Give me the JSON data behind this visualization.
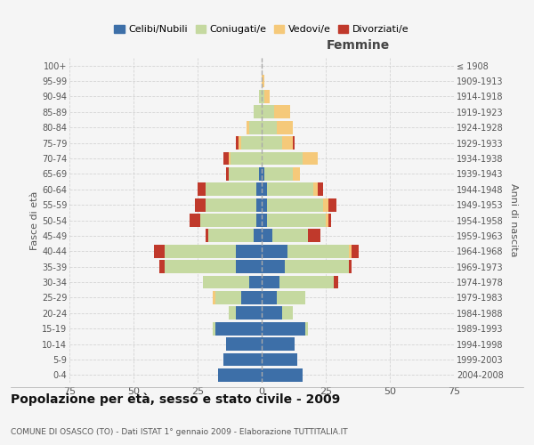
{
  "age_groups": [
    "0-4",
    "5-9",
    "10-14",
    "15-19",
    "20-24",
    "25-29",
    "30-34",
    "35-39",
    "40-44",
    "45-49",
    "50-54",
    "55-59",
    "60-64",
    "65-69",
    "70-74",
    "75-79",
    "80-84",
    "85-89",
    "90-94",
    "95-99",
    "100+"
  ],
  "birth_years": [
    "2004-2008",
    "1999-2003",
    "1994-1998",
    "1989-1993",
    "1984-1988",
    "1979-1983",
    "1974-1978",
    "1969-1973",
    "1964-1968",
    "1959-1963",
    "1954-1958",
    "1949-1953",
    "1944-1948",
    "1939-1943",
    "1934-1938",
    "1929-1933",
    "1924-1928",
    "1919-1923",
    "1914-1918",
    "1909-1913",
    "≤ 1908"
  ],
  "males": {
    "celibi": [
      17,
      15,
      14,
      18,
      10,
      8,
      5,
      10,
      10,
      3,
      2,
      2,
      2,
      1,
      0,
      0,
      0,
      0,
      0,
      0,
      0
    ],
    "coniugati": [
      0,
      0,
      0,
      1,
      3,
      10,
      18,
      28,
      28,
      18,
      22,
      20,
      20,
      12,
      12,
      8,
      5,
      3,
      1,
      0,
      0
    ],
    "vedovi": [
      0,
      0,
      0,
      0,
      0,
      1,
      0,
      0,
      0,
      0,
      0,
      0,
      0,
      0,
      1,
      1,
      1,
      0,
      0,
      0,
      0
    ],
    "divorziati": [
      0,
      0,
      0,
      0,
      0,
      0,
      0,
      2,
      4,
      1,
      4,
      4,
      3,
      1,
      2,
      1,
      0,
      0,
      0,
      0,
      0
    ]
  },
  "females": {
    "nubili": [
      16,
      14,
      13,
      17,
      8,
      6,
      7,
      9,
      10,
      4,
      2,
      2,
      2,
      1,
      0,
      0,
      0,
      0,
      0,
      0,
      0
    ],
    "coniugate": [
      0,
      0,
      0,
      1,
      4,
      11,
      21,
      25,
      24,
      14,
      23,
      22,
      18,
      11,
      16,
      8,
      6,
      5,
      1,
      0,
      0
    ],
    "vedove": [
      0,
      0,
      0,
      0,
      0,
      0,
      0,
      0,
      1,
      0,
      1,
      2,
      2,
      3,
      6,
      4,
      6,
      6,
      2,
      1,
      0
    ],
    "divorziate": [
      0,
      0,
      0,
      0,
      0,
      0,
      2,
      1,
      3,
      5,
      1,
      3,
      2,
      0,
      0,
      1,
      0,
      0,
      0,
      0,
      0
    ]
  },
  "color_celibi": "#3d6fa8",
  "color_coniugati": "#c5d9a0",
  "color_vedovi": "#f5c97a",
  "color_divorziati": "#c0392b",
  "title": "Popolazione per età, sesso e stato civile - 2009",
  "subtitle": "COMUNE DI OSASCO (TO) - Dati ISTAT 1° gennaio 2009 - Elaborazione TUTTITALIA.IT",
  "xlim": 75,
  "background_color": "#f5f5f5",
  "grid_color": "#cccccc",
  "bar_height": 0.85
}
